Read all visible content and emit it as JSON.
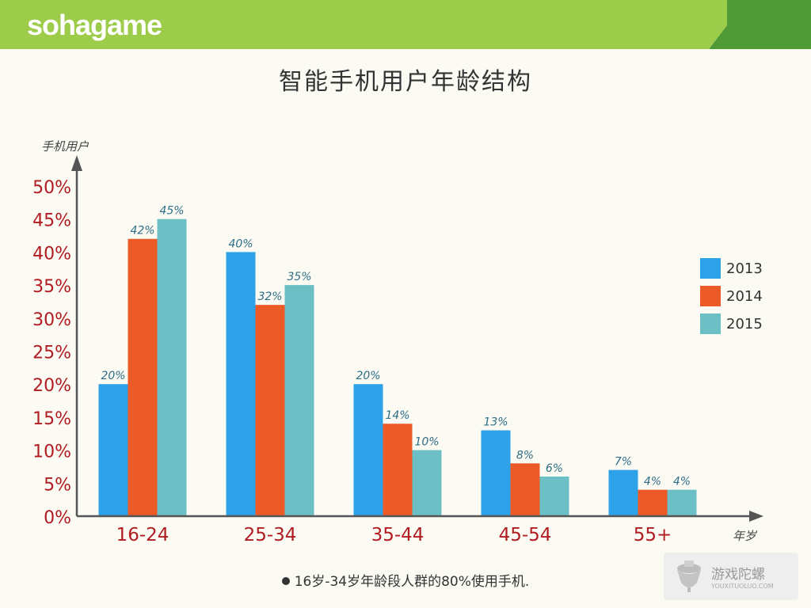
{
  "brand": {
    "logo_text": "sohagame",
    "colors": {
      "header_light": "#9ccc4a",
      "header_dark": "#4f9a34"
    }
  },
  "title": "智能手机用户年龄结构",
  "footnote": "16岁-34岁年龄段人群的80%使用手机.",
  "watermark": {
    "cn": "游戏陀螺",
    "en": "YOUXITUOLUO.COM"
  },
  "chart_data": {
    "type": "bar",
    "y_axis_label": "手机用户",
    "x_axis_label": "年岁",
    "categories": [
      "16-24",
      "25-34",
      "35-44",
      "45-54",
      "55+"
    ],
    "ylim": [
      0,
      50
    ],
    "yticks": [
      0,
      5,
      10,
      15,
      20,
      25,
      30,
      35,
      40,
      45,
      50
    ],
    "tick_suffix": "%",
    "grid": false,
    "legend_position": "right",
    "series": [
      {
        "name": "2013",
        "color": "#2ea2e8",
        "values": [
          20,
          40,
          20,
          13,
          7
        ],
        "labels": [
          "20%",
          "40%",
          "20%",
          "13%",
          "7%"
        ]
      },
      {
        "name": "2014",
        "color": "#ec5a28",
        "values": [
          42,
          32,
          14,
          8,
          4
        ],
        "labels": [
          "42%",
          "32%",
          "14%",
          "8%",
          "4%"
        ]
      },
      {
        "name": "2015",
        "color": "#6cbfc4",
        "values": [
          45,
          35,
          10,
          6,
          4
        ],
        "labels": [
          "45%",
          "35%",
          "10%",
          "6%",
          "4%"
        ]
      }
    ]
  }
}
